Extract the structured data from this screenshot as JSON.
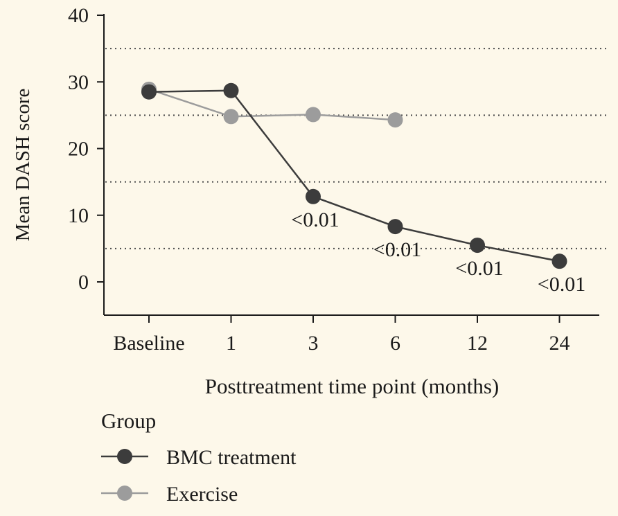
{
  "chart_data": {
    "type": "line",
    "title": "",
    "xlabel": "Posttreatment time point (months)",
    "ylabel": "Mean DASH score",
    "categories": [
      "Baseline",
      "1",
      "3",
      "6",
      "12",
      "24"
    ],
    "yticks": [
      0,
      10,
      20,
      30,
      40
    ],
    "ylim": [
      -5,
      40
    ],
    "grid": {
      "style": "dotted",
      "yvalues": [
        5,
        15,
        25,
        35
      ]
    },
    "series": [
      {
        "name": "BMC treatment",
        "color": "#3c3c3c",
        "values": [
          28.5,
          28.7,
          12.8,
          8.3,
          5.5,
          3.1
        ],
        "annotations": [
          "",
          "",
          "<0.01",
          "<0.01",
          "<0.01",
          "<0.01"
        ]
      },
      {
        "name": "Exercise",
        "color": "#9c9c9c",
        "values": [
          28.9,
          24.8,
          25.1,
          24.3,
          null,
          null
        ]
      }
    ],
    "legend": {
      "title": "Group",
      "placement": "bottom-left"
    }
  }
}
